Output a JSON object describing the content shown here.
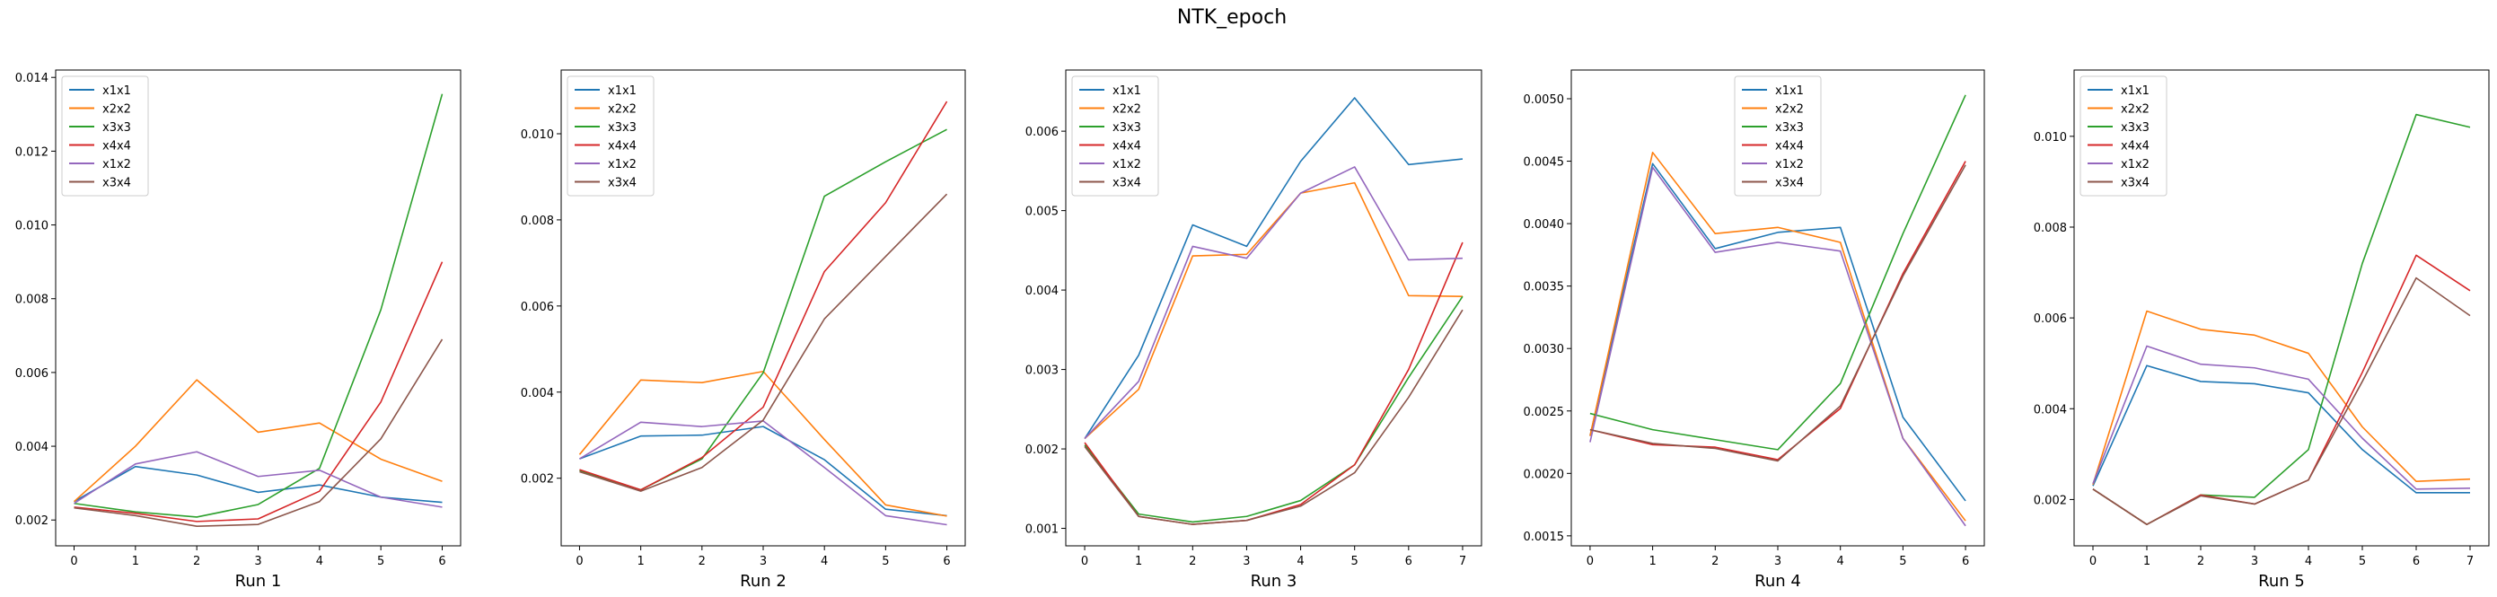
{
  "figure": {
    "title": "NTK_epoch"
  },
  "chart_data": [
    {
      "type": "line",
      "title": "",
      "xlabel": "Run 1",
      "ylabel": "",
      "x": [
        0,
        1,
        2,
        3,
        4,
        5,
        6
      ],
      "xlim": [
        -0.3,
        6.3
      ],
      "ylim": [
        0.0013,
        0.0142
      ],
      "yticks": [
        0.002,
        0.004,
        0.006,
        0.008,
        0.01,
        0.012,
        0.014
      ],
      "ytick_labels": [
        "0.002",
        "0.004",
        "0.006",
        "0.008",
        "0.010",
        "0.012",
        "0.014"
      ],
      "legend_position": "top-left",
      "grid": false,
      "series": [
        {
          "name": "x1x1",
          "color": "#1f77b4",
          "values": [
            0.0025,
            0.00345,
            0.00322,
            0.00275,
            0.00295,
            0.00262,
            0.00248
          ]
        },
        {
          "name": "x2x2",
          "color": "#ff7f0e",
          "values": [
            0.0025,
            0.004,
            0.0058,
            0.00438,
            0.00463,
            0.00365,
            0.00305
          ]
        },
        {
          "name": "x3x3",
          "color": "#2ca02c",
          "values": [
            0.00245,
            0.00222,
            0.00208,
            0.00242,
            0.0034,
            0.0077,
            0.01355
          ]
        },
        {
          "name": "x4x4",
          "color": "#d62728",
          "values": [
            0.00235,
            0.00218,
            0.00196,
            0.00203,
            0.00278,
            0.0052,
            0.009
          ]
        },
        {
          "name": "x1x2",
          "color": "#9467bd",
          "values": [
            0.00245,
            0.00352,
            0.00385,
            0.00318,
            0.00335,
            0.00262,
            0.00235
          ]
        },
        {
          "name": "x3x4",
          "color": "#8c564b",
          "values": [
            0.00233,
            0.00212,
            0.00183,
            0.00188,
            0.0025,
            0.0042,
            0.0069
          ]
        }
      ]
    },
    {
      "type": "line",
      "title": "",
      "xlabel": "Run 2",
      "ylabel": "",
      "x": [
        0,
        1,
        2,
        3,
        4,
        5,
        6
      ],
      "xlim": [
        -0.3,
        6.3
      ],
      "ylim": [
        0.00043,
        0.01148
      ],
      "yticks": [
        0.002,
        0.004,
        0.006,
        0.008,
        0.01
      ],
      "ytick_labels": [
        "0.002",
        "0.004",
        "0.006",
        "0.008",
        "0.010"
      ],
      "legend_position": "top-left",
      "grid": false,
      "series": [
        {
          "name": "x1x1",
          "color": "#1f77b4",
          "values": [
            0.00245,
            0.00298,
            0.003,
            0.0032,
            0.00243,
            0.00128,
            0.00113
          ]
        },
        {
          "name": "x2x2",
          "color": "#ff7f0e",
          "values": [
            0.00255,
            0.00428,
            0.00422,
            0.00448,
            0.0029,
            0.00138,
            0.00112
          ]
        },
        {
          "name": "x3x3",
          "color": "#2ca02c",
          "values": [
            0.00218,
            0.00173,
            0.00245,
            0.00445,
            0.00855,
            0.00935,
            0.0101
          ]
        },
        {
          "name": "x4x4",
          "color": "#d62728",
          "values": [
            0.0022,
            0.00173,
            0.00248,
            0.00365,
            0.0068,
            0.0084,
            0.01075
          ]
        },
        {
          "name": "x1x2",
          "color": "#9467bd",
          "values": [
            0.00245,
            0.0033,
            0.0032,
            0.00333,
            0.00225,
            0.00113,
            0.00092
          ]
        },
        {
          "name": "x3x4",
          "color": "#8c564b",
          "values": [
            0.00215,
            0.0017,
            0.00225,
            0.00335,
            0.0057,
            0.00715,
            0.0086
          ]
        }
      ]
    },
    {
      "type": "line",
      "title": "",
      "xlabel": "Run 3",
      "ylabel": "",
      "x": [
        0,
        1,
        2,
        3,
        4,
        5,
        6,
        7
      ],
      "xlim": [
        -0.35,
        7.35
      ],
      "ylim": [
        0.00078,
        0.00677
      ],
      "yticks": [
        0.001,
        0.002,
        0.003,
        0.004,
        0.005,
        0.006
      ],
      "ytick_labels": [
        "0.001",
        "0.002",
        "0.003",
        "0.004",
        "0.005",
        "0.006"
      ],
      "legend_position": "top-left",
      "grid": false,
      "series": [
        {
          "name": "x1x1",
          "color": "#1f77b4",
          "values": [
            0.00213,
            0.00318,
            0.00482,
            0.00455,
            0.00562,
            0.00642,
            0.00558,
            0.00565
          ]
        },
        {
          "name": "x2x2",
          "color": "#ff7f0e",
          "values": [
            0.00213,
            0.00275,
            0.00443,
            0.00445,
            0.00522,
            0.00535,
            0.00393,
            0.00392
          ]
        },
        {
          "name": "x3x3",
          "color": "#2ca02c",
          "values": [
            0.00205,
            0.00118,
            0.00108,
            0.00115,
            0.00135,
            0.0018,
            0.0029,
            0.00392
          ]
        },
        {
          "name": "x4x4",
          "color": "#d62728",
          "values": [
            0.00208,
            0.00115,
            0.00105,
            0.0011,
            0.0013,
            0.0018,
            0.003,
            0.0046
          ]
        },
        {
          "name": "x1x2",
          "color": "#9467bd",
          "values": [
            0.00213,
            0.00285,
            0.00455,
            0.0044,
            0.00522,
            0.00555,
            0.00438,
            0.0044
          ]
        },
        {
          "name": "x3x4",
          "color": "#8c564b",
          "values": [
            0.00203,
            0.00115,
            0.00105,
            0.0011,
            0.00128,
            0.0017,
            0.00265,
            0.00375
          ]
        }
      ]
    },
    {
      "type": "line",
      "title": "",
      "xlabel": "Run 4",
      "ylabel": "",
      "x": [
        0,
        1,
        2,
        3,
        4,
        5,
        6
      ],
      "xlim": [
        -0.3,
        6.3
      ],
      "ylim": [
        0.00142,
        0.00523
      ],
      "yticks": [
        0.0015,
        0.002,
        0.0025,
        0.003,
        0.0035,
        0.004,
        0.0045,
        0.005
      ],
      "ytick_labels": [
        "0.0015",
        "0.0020",
        "0.0025",
        "0.0030",
        "0.0035",
        "0.0040",
        "0.0045",
        "0.0050"
      ],
      "legend_position": "top-center",
      "grid": false,
      "series": [
        {
          "name": "x1x1",
          "color": "#1f77b4",
          "values": [
            0.0023,
            0.00448,
            0.0038,
            0.00393,
            0.00397,
            0.00245,
            0.00178
          ]
        },
        {
          "name": "x2x2",
          "color": "#ff7f0e",
          "values": [
            0.0023,
            0.00457,
            0.00392,
            0.00397,
            0.00385,
            0.00228,
            0.00162
          ]
        },
        {
          "name": "x3x3",
          "color": "#2ca02c",
          "values": [
            0.00248,
            0.00235,
            0.00227,
            0.00219,
            0.00272,
            0.00392,
            0.00503
          ]
        },
        {
          "name": "x4x4",
          "color": "#d62728",
          "values": [
            0.00235,
            0.00223,
            0.00221,
            0.00211,
            0.00252,
            0.0036,
            0.0045
          ]
        },
        {
          "name": "x1x2",
          "color": "#9467bd",
          "values": [
            0.00225,
            0.00445,
            0.00377,
            0.00385,
            0.00378,
            0.00228,
            0.00158
          ]
        },
        {
          "name": "x3x4",
          "color": "#8c564b",
          "values": [
            0.00235,
            0.00224,
            0.0022,
            0.0021,
            0.00254,
            0.00358,
            0.00447
          ]
        }
      ]
    },
    {
      "type": "line",
      "title": "",
      "xlabel": "Run 5",
      "ylabel": "",
      "x": [
        0,
        1,
        2,
        3,
        4,
        5,
        6,
        7
      ],
      "xlim": [
        -0.35,
        7.35
      ],
      "ylim": [
        0.00098,
        0.01146
      ],
      "yticks": [
        0.002,
        0.004,
        0.006,
        0.008,
        0.01
      ],
      "ytick_labels": [
        "0.002",
        "0.004",
        "0.006",
        "0.008",
        "0.010"
      ],
      "legend_position": "top-left",
      "grid": false,
      "series": [
        {
          "name": "x1x1",
          "color": "#1f77b4",
          "values": [
            0.0023,
            0.00495,
            0.0046,
            0.00455,
            0.00435,
            0.0031,
            0.00215,
            0.00215
          ]
        },
        {
          "name": "x2x2",
          "color": "#ff7f0e",
          "values": [
            0.00233,
            0.00615,
            0.00575,
            0.00562,
            0.00522,
            0.0036,
            0.0024,
            0.00245
          ]
        },
        {
          "name": "x3x3",
          "color": "#2ca02c",
          "values": [
            0.00223,
            0.00145,
            0.0021,
            0.00205,
            0.0031,
            0.0072,
            0.01048,
            0.0102
          ]
        },
        {
          "name": "x4x4",
          "color": "#d62728",
          "values": [
            0.00223,
            0.00145,
            0.0021,
            0.0019,
            0.00243,
            0.0048,
            0.00738,
            0.0066
          ]
        },
        {
          "name": "x1x2",
          "color": "#9467bd",
          "values": [
            0.00235,
            0.00538,
            0.00498,
            0.0049,
            0.00465,
            0.00335,
            0.00223,
            0.00225
          ]
        },
        {
          "name": "x3x4",
          "color": "#8c564b",
          "values": [
            0.00223,
            0.00145,
            0.00208,
            0.0019,
            0.00243,
            0.0046,
            0.00688,
            0.00605
          ]
        }
      ]
    }
  ]
}
